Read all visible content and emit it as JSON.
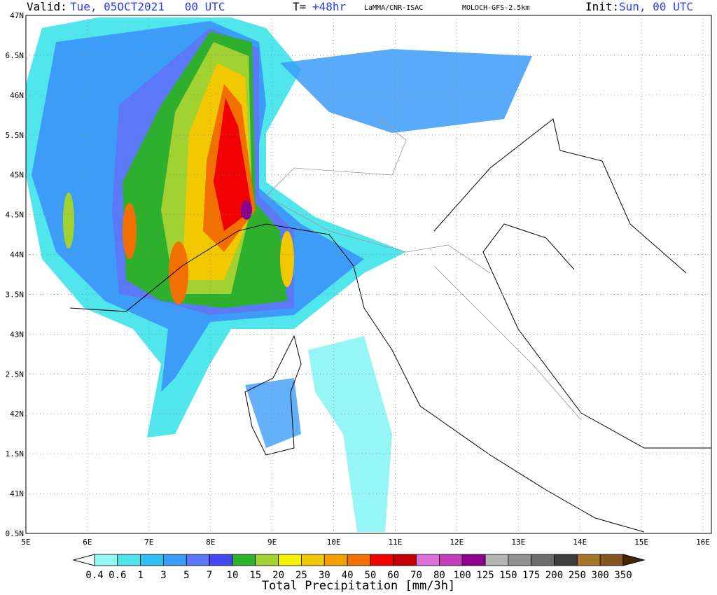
{
  "header": {
    "valid_label": "Valid:",
    "valid_value": "Tue, 05OCT2021   00 UTC",
    "t_label": "T=",
    "t_value": "+48hr",
    "source": "LaMMA/CNR-ISAC",
    "model": "MOLOCH-GFS-2.5km",
    "init_label": "Init:",
    "init_value": "Sun, 00 UTC"
  },
  "map": {
    "lat_labels": [
      "47N",
      "6.5N",
      "46N",
      "5.5N",
      "45N",
      "4.5N",
      "44N",
      "3.5N",
      "43N",
      "2.5N",
      "42N",
      "1.5N",
      "41N",
      "0.5N"
    ],
    "lon_labels": [
      "5E",
      "6E",
      "7E",
      "8E",
      "9E",
      "10E",
      "11E",
      "12E",
      "13E",
      "14E",
      "15E",
      "16E"
    ]
  },
  "colorbar": {
    "title": "Total Precipitation [mm/3h]",
    "labels": [
      "0.4",
      "0.6",
      "1",
      "3",
      "5",
      "7",
      "10",
      "15",
      "20",
      "25",
      "30",
      "40",
      "50",
      "60",
      "70",
      "80",
      "100",
      "125",
      "150",
      "175",
      "200",
      "250",
      "300",
      "350"
    ],
    "colors": [
      "#ffffff",
      "#96f5f5",
      "#50e6ec",
      "#30bef4",
      "#3c9cf8",
      "#5a78f8",
      "#4646f0",
      "#2eb02e",
      "#a2d232",
      "#f4f000",
      "#f2c800",
      "#f2a000",
      "#f27000",
      "#f00000",
      "#c40000",
      "#e070d8",
      "#c040b8",
      "#8c0090",
      "#b4b4b4",
      "#909090",
      "#6c6c6c",
      "#3c3c3c",
      "#a8742a",
      "#84541a",
      "#64360c",
      "#4a2406"
    ]
  }
}
